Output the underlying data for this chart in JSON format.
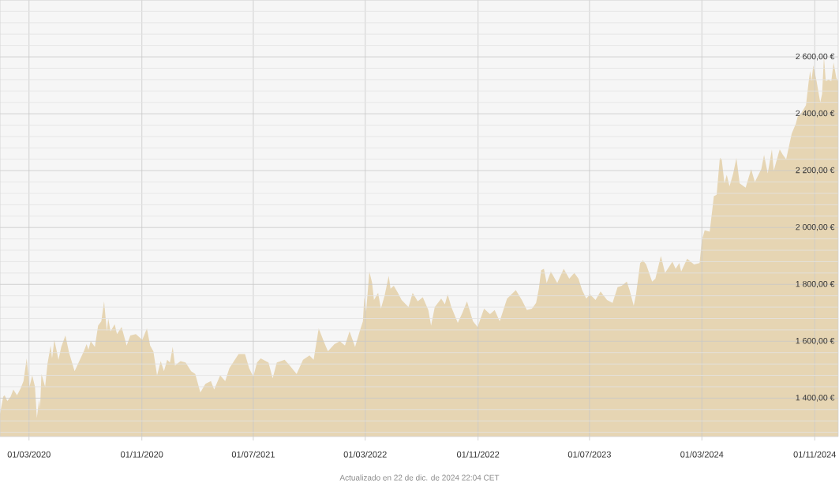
{
  "chart_data": {
    "type": "area",
    "color": "#e6d5b3",
    "xlim": [
      "2019-12-29",
      "2024-12-22"
    ],
    "ylim": [
      1265,
      2800
    ],
    "xticks": [
      {
        "value": "2020-03-01",
        "label": "01/03/2020"
      },
      {
        "value": "2020-11-01",
        "label": "01/11/2020"
      },
      {
        "value": "2021-07-01",
        "label": "01/07/2021"
      },
      {
        "value": "2022-03-01",
        "label": "01/03/2022"
      },
      {
        "value": "2022-11-01",
        "label": "01/11/2022"
      },
      {
        "value": "2023-07-01",
        "label": "01/07/2023"
      },
      {
        "value": "2024-03-01",
        "label": "01/03/2024"
      },
      {
        "value": "2024-11-01",
        "label": "01/11/2024"
      }
    ],
    "yticks": [
      {
        "value": 1280,
        "label": null
      },
      {
        "value": 1320,
        "label": null
      },
      {
        "value": 1360,
        "label": null
      },
      {
        "value": 1400,
        "label": "1 400,00 €"
      },
      {
        "value": 1440,
        "label": null
      },
      {
        "value": 1480,
        "label": null
      },
      {
        "value": 1520,
        "label": null
      },
      {
        "value": 1560,
        "label": null
      },
      {
        "value": 1600,
        "label": "1 600,00 €"
      },
      {
        "value": 1640,
        "label": null
      },
      {
        "value": 1680,
        "label": null
      },
      {
        "value": 1720,
        "label": null
      },
      {
        "value": 1760,
        "label": null
      },
      {
        "value": 1800,
        "label": "1 800,00 €"
      },
      {
        "value": 1840,
        "label": null
      },
      {
        "value": 1880,
        "label": null
      },
      {
        "value": 1920,
        "label": null
      },
      {
        "value": 1960,
        "label": null
      },
      {
        "value": 2000,
        "label": "2 000,00 €"
      },
      {
        "value": 2040,
        "label": null
      },
      {
        "value": 2080,
        "label": null
      },
      {
        "value": 2120,
        "label": null
      },
      {
        "value": 2160,
        "label": null
      },
      {
        "value": 2200,
        "label": "2 200,00 €"
      },
      {
        "value": 2240,
        "label": null
      },
      {
        "value": 2280,
        "label": null
      },
      {
        "value": 2320,
        "label": null
      },
      {
        "value": 2360,
        "label": null
      },
      {
        "value": 2400,
        "label": "2 400,00 €"
      },
      {
        "value": 2440,
        "label": null
      },
      {
        "value": 2480,
        "label": null
      },
      {
        "value": 2520,
        "label": null
      },
      {
        "value": 2560,
        "label": null
      },
      {
        "value": 2600,
        "label": "2 600,00 €"
      },
      {
        "value": 2640,
        "label": null
      },
      {
        "value": 2680,
        "label": null
      },
      {
        "value": 2720,
        "label": null
      },
      {
        "value": 2760,
        "label": null
      },
      {
        "value": 2800,
        "label": null
      }
    ],
    "grid": true,
    "annotations": [
      "Actualizado en 22 de dic. de 2024 22:04 CET"
    ],
    "x": [
      "2019-12-29",
      "2020-01-05",
      "2020-01-08",
      "2020-01-14",
      "2020-01-21",
      "2020-01-27",
      "2020-02-04",
      "2020-02-12",
      "2020-02-18",
      "2020-02-25",
      "2020-03-02",
      "2020-03-08",
      "2020-03-14",
      "2020-03-18",
      "2020-03-23",
      "2020-03-25",
      "2020-03-28",
      "2020-04-05",
      "2020-04-10",
      "2020-04-17",
      "2020-04-20",
      "2020-04-25",
      "2020-05-04",
      "2020-05-10",
      "2020-05-19",
      "2020-05-27",
      "2020-06-08",
      "2020-06-18",
      "2020-06-28",
      "2020-07-04",
      "2020-07-08",
      "2020-07-13",
      "2020-07-22",
      "2020-07-29",
      "2020-08-05",
      "2020-08-11",
      "2020-08-17",
      "2020-08-20",
      "2020-08-25",
      "2020-09-03",
      "2020-09-08",
      "2020-09-18",
      "2020-09-29",
      "2020-10-07",
      "2020-10-19",
      "2020-11-02",
      "2020-11-12",
      "2020-11-19",
      "2020-11-26",
      "2020-12-04",
      "2020-12-12",
      "2020-12-19",
      "2020-12-26",
      "2021-01-01",
      "2021-01-07",
      "2021-01-12",
      "2021-01-24",
      "2021-02-04",
      "2021-02-16",
      "2021-02-25",
      "2021-03-08",
      "2021-03-19",
      "2021-03-31",
      "2021-04-07",
      "2021-04-20",
      "2021-05-01",
      "2021-05-10",
      "2021-05-30",
      "2021-06-13",
      "2021-06-22",
      "2021-07-01",
      "2021-07-09",
      "2021-07-17",
      "2021-08-03",
      "2021-08-12",
      "2021-08-21",
      "2021-09-07",
      "2021-09-18",
      "2021-10-03",
      "2021-10-17",
      "2021-10-31",
      "2021-11-09",
      "2021-11-20",
      "2021-12-02",
      "2021-12-10",
      "2021-12-24",
      "2022-01-05",
      "2022-01-16",
      "2022-01-26",
      "2022-02-07",
      "2022-02-17",
      "2022-02-24",
      "2022-02-27",
      "2022-03-03",
      "2022-03-10",
      "2022-03-16",
      "2022-03-20",
      "2022-03-29",
      "2022-04-04",
      "2022-04-12",
      "2022-04-21",
      "2022-04-25",
      "2022-05-02",
      "2022-05-11",
      "2022-05-19",
      "2022-06-03",
      "2022-06-12",
      "2022-06-23",
      "2022-07-04",
      "2022-07-16",
      "2022-07-22",
      "2022-07-30",
      "2022-08-13",
      "2022-08-21",
      "2022-08-27",
      "2022-09-04",
      "2022-09-18",
      "2022-09-28",
      "2022-10-08",
      "2022-10-21",
      "2022-10-31",
      "2022-11-14",
      "2022-11-27",
      "2022-12-07",
      "2022-12-18",
      "2023-01-03",
      "2023-01-22",
      "2023-02-04",
      "2023-02-15",
      "2023-02-26",
      "2023-03-07",
      "2023-03-13",
      "2023-03-18",
      "2023-03-24",
      "2023-03-30",
      "2023-04-08",
      "2023-04-22",
      "2023-05-06",
      "2023-05-18",
      "2023-05-29",
      "2023-06-07",
      "2023-06-15",
      "2023-06-24",
      "2023-07-02",
      "2023-07-14",
      "2023-07-25",
      "2023-08-08",
      "2023-08-20",
      "2023-08-31",
      "2023-09-09",
      "2023-09-20",
      "2023-09-26",
      "2023-10-05",
      "2023-10-10",
      "2023-10-19",
      "2023-10-25",
      "2023-11-01",
      "2023-11-14",
      "2023-11-21",
      "2023-12-03",
      "2023-12-12",
      "2023-12-28",
      "2024-01-04",
      "2024-01-12",
      "2024-01-16",
      "2024-01-29",
      "2024-02-13",
      "2024-02-25",
      "2024-03-01",
      "2024-03-07",
      "2024-03-18",
      "2024-03-27",
      "2024-04-02",
      "2024-04-09",
      "2024-04-13",
      "2024-04-19",
      "2024-04-24",
      "2024-04-30",
      "2024-05-08",
      "2024-05-15",
      "2024-05-22",
      "2024-06-04",
      "2024-06-16",
      "2024-06-24",
      "2024-07-08",
      "2024-07-14",
      "2024-07-22",
      "2024-07-31",
      "2024-08-04",
      "2024-08-17",
      "2024-08-24",
      "2024-08-31",
      "2024-09-04",
      "2024-09-12",
      "2024-09-21",
      "2024-09-25",
      "2024-10-02",
      "2024-10-13",
      "2024-10-19",
      "2024-10-22",
      "2024-10-25",
      "2024-10-29",
      "2024-11-05",
      "2024-11-13",
      "2024-11-17",
      "2024-11-21",
      "2024-11-25",
      "2024-12-01",
      "2024-12-07",
      "2024-12-12",
      "2024-12-18",
      "2024-12-22"
    ],
    "values": [
      1345,
      1405,
      1410,
      1390,
      1405,
      1430,
      1410,
      1435,
      1460,
      1540,
      1440,
      1480,
      1440,
      1330,
      1395,
      1365,
      1485,
      1440,
      1520,
      1585,
      1540,
      1605,
      1535,
      1580,
      1620,
      1560,
      1495,
      1530,
      1565,
      1590,
      1570,
      1600,
      1580,
      1655,
      1670,
      1740,
      1635,
      1680,
      1635,
      1660,
      1625,
      1650,
      1585,
      1620,
      1625,
      1605,
      1645,
      1585,
      1565,
      1480,
      1530,
      1495,
      1535,
      1525,
      1580,
      1515,
      1530,
      1525,
      1495,
      1485,
      1420,
      1450,
      1460,
      1430,
      1480,
      1460,
      1505,
      1555,
      1555,
      1505,
      1475,
      1525,
      1540,
      1525,
      1470,
      1525,
      1535,
      1515,
      1485,
      1535,
      1550,
      1535,
      1645,
      1595,
      1565,
      1590,
      1600,
      1585,
      1635,
      1580,
      1635,
      1670,
      1755,
      1705,
      1845,
      1805,
      1745,
      1770,
      1715,
      1760,
      1830,
      1785,
      1795,
      1770,
      1745,
      1720,
      1770,
      1740,
      1755,
      1710,
      1655,
      1720,
      1750,
      1730,
      1765,
      1720,
      1665,
      1700,
      1740,
      1670,
      1650,
      1715,
      1695,
      1710,
      1670,
      1750,
      1780,
      1745,
      1710,
      1715,
      1735,
      1785,
      1850,
      1855,
      1805,
      1845,
      1805,
      1855,
      1820,
      1840,
      1820,
      1780,
      1750,
      1765,
      1745,
      1775,
      1745,
      1735,
      1790,
      1795,
      1810,
      1780,
      1725,
      1765,
      1875,
      1885,
      1870,
      1810,
      1820,
      1900,
      1840,
      1880,
      1855,
      1875,
      1845,
      1890,
      1870,
      1875,
      1955,
      1990,
      1985,
      2110,
      2115,
      2245,
      2240,
      2155,
      2185,
      2145,
      2190,
      2245,
      2155,
      2140,
      2205,
      2160,
      2205,
      2255,
      2190,
      2275,
      2200,
      2275,
      2255,
      2240,
      2270,
      2330,
      2365,
      2390,
      2400,
      2430,
      2515,
      2550,
      2515,
      2570,
      2515,
      2440,
      2470,
      2600,
      2515,
      2520,
      2515,
      2580,
      2525,
      2515
    ]
  }
}
